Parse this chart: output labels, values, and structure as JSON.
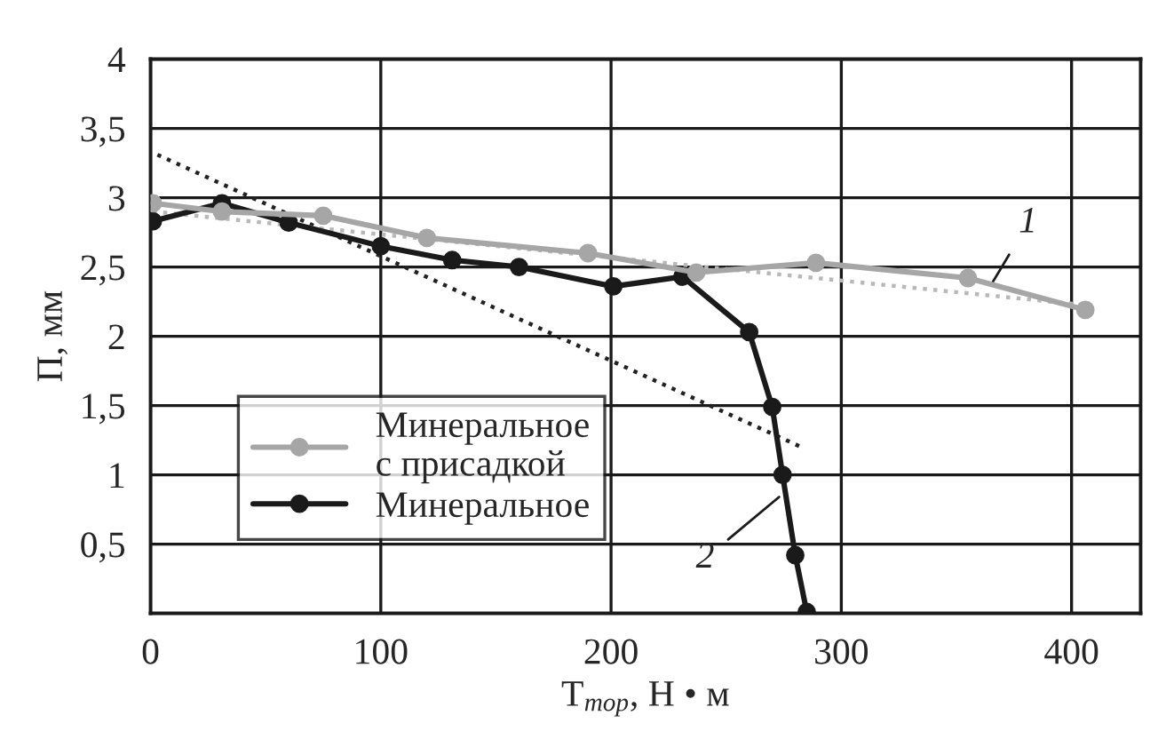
{
  "chart_data": {
    "type": "line",
    "xlabel": "T$_{тор}$, Н • м",
    "ylabel": "П, мм",
    "xlim": [
      0,
      430
    ],
    "xticks": [
      0,
      100,
      200,
      300,
      400
    ],
    "ylim": [
      0,
      4
    ],
    "yticks": [
      {
        "value": 0.5,
        "label": "0,5"
      },
      {
        "value": 1,
        "label": "1"
      },
      {
        "value": 1.5,
        "label": "1,5"
      },
      {
        "value": 2,
        "label": "2"
      },
      {
        "value": 2.5,
        "label": "2,5"
      },
      {
        "value": 3,
        "label": "3"
      },
      {
        "value": 3.5,
        "label": "3,5"
      },
      {
        "value": 4,
        "label": "4"
      }
    ],
    "grid": true,
    "legend": "bottom left",
    "series": [
      {
        "name": "Минеральное\nс присадкой",
        "color": "#a6a6a6",
        "marker": "circle",
        "line_style": "solid",
        "x": [
          1,
          31,
          75,
          120,
          190,
          237,
          289,
          355,
          406
        ],
        "values": [
          2.96,
          2.9,
          2.87,
          2.71,
          2.6,
          2.46,
          2.53,
          2.42,
          2.19
        ]
      },
      {
        "name": "Минеральное",
        "color": "#1a1a1a",
        "marker": "circle",
        "line_style": "solid",
        "x": [
          1,
          31,
          60,
          100,
          131,
          160,
          201,
          231,
          260,
          270,
          274.5,
          280,
          285
        ],
        "values": [
          2.83,
          2.96,
          2.82,
          2.65,
          2.55,
          2.5,
          2.36,
          2.43,
          2.03,
          1.49,
          1.0,
          0.42,
          0.01
        ]
      },
      {
        "color": "#b8b8b8",
        "marker": "none",
        "line_style": "dotted",
        "x": [
          1,
          409
        ],
        "values": [
          2.9,
          2.22
        ]
      },
      {
        "color": "#222222",
        "marker": "none",
        "line_style": "dotted",
        "x": [
          3,
          284
        ],
        "values": [
          3.31,
          1.19
        ]
      }
    ],
    "annotations": [
      {
        "text": "1",
        "x": 365,
        "y": 2.37
      },
      {
        "text": "2",
        "x": 273,
        "y": 0.84
      }
    ]
  }
}
